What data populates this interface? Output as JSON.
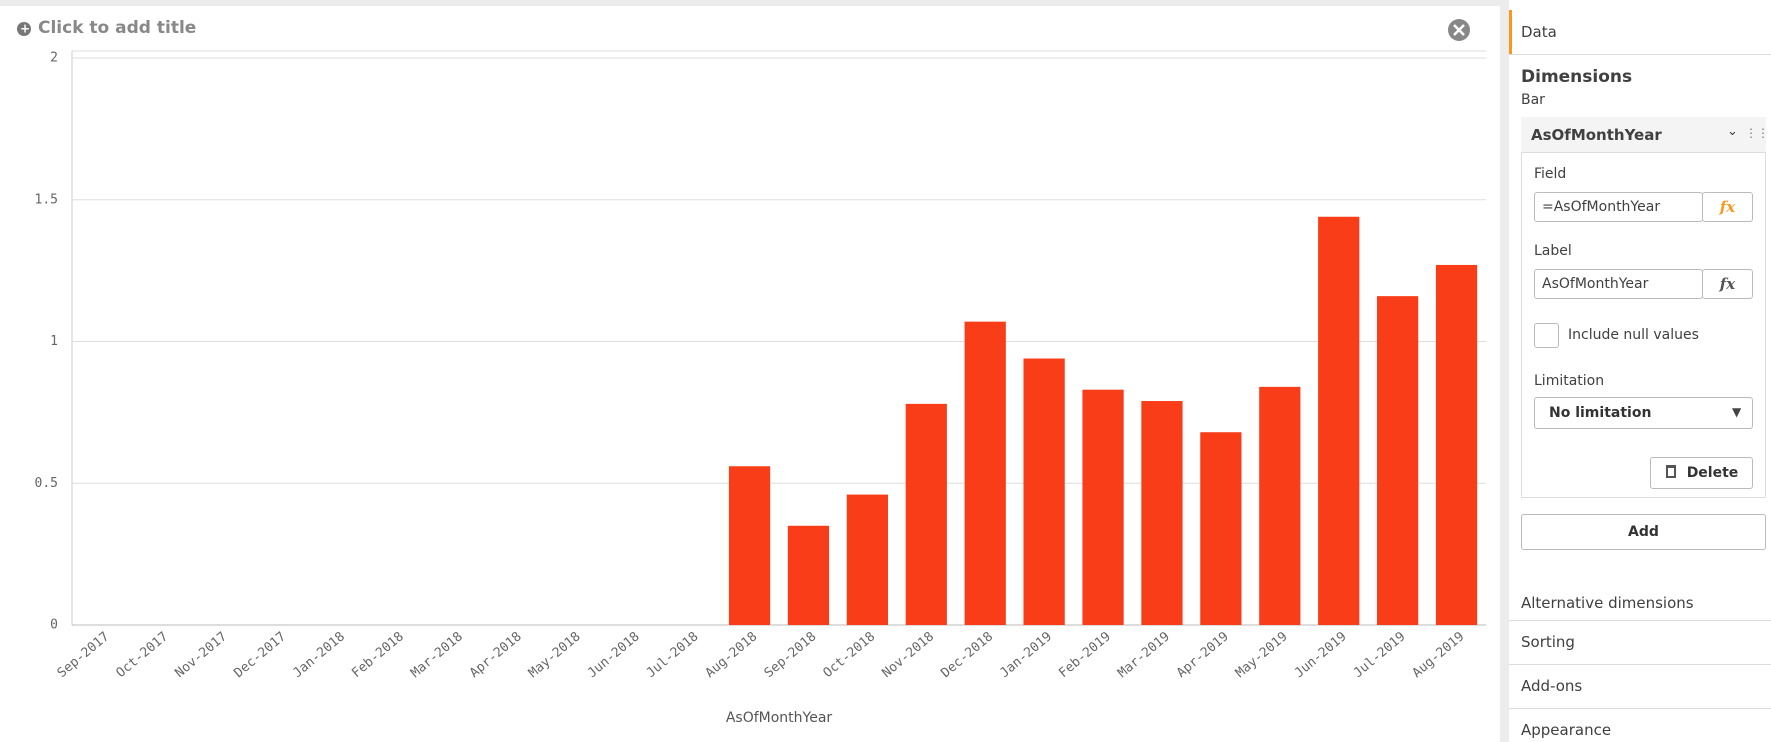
{
  "chart_data": {
    "type": "bar",
    "title": "Click to add title",
    "x_label": "AsOfMonthYear",
    "categories": [
      "Sep-2017",
      "Oct-2017",
      "Nov-2017",
      "Dec-2017",
      "Jan-2018",
      "Feb-2018",
      "Mar-2018",
      "Apr-2018",
      "May-2018",
      "Jun-2018",
      "Jul-2018",
      "Aug-2018",
      "Sep-2018",
      "Oct-2018",
      "Nov-2018",
      "Dec-2018",
      "Jan-2019",
      "Feb-2019",
      "Mar-2019",
      "Apr-2019",
      "May-2019",
      "Jun-2019",
      "Jul-2019",
      "Aug-2019"
    ],
    "values": [
      0,
      0,
      0,
      0,
      0,
      0,
      0,
      0,
      0,
      0,
      0,
      0.56,
      0.35,
      0.46,
      0.78,
      1.07,
      0.94,
      0.83,
      0.79,
      0.68,
      0.84,
      1.44,
      1.16,
      1.27
    ],
    "color": "#f93d19",
    "ylim": [
      0,
      2
    ],
    "yticks": [
      0,
      0.5,
      1,
      1.5,
      2
    ],
    "grid": true
  },
  "panel": {
    "tab": "Data",
    "section": "Dimensions",
    "subsection": "Bar",
    "dimension": "AsOfMonthYear",
    "field_label": "Field",
    "field_value": "=AsOfMonthYear",
    "fx": "fx",
    "label_label": "Label",
    "label_value": "AsOfMonthYear",
    "checkbox_label": "Include null values",
    "limitation_label": "Limitation",
    "limitation_value": "No limitation",
    "delete": "Delete",
    "add": "Add",
    "sections": [
      "Alternative dimensions",
      "Sorting",
      "Add-ons",
      "Appearance"
    ]
  }
}
